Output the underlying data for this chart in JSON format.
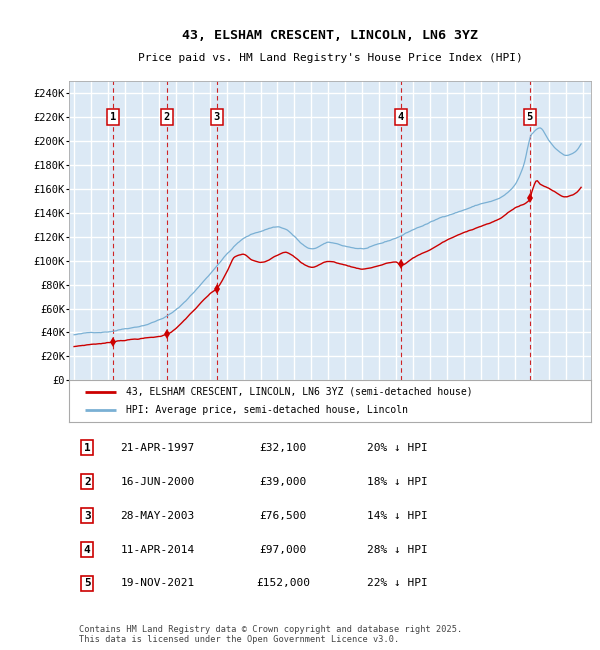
{
  "title": "43, ELSHAM CRESCENT, LINCOLN, LN6 3YZ",
  "subtitle": "Price paid vs. HM Land Registry's House Price Index (HPI)",
  "ylim": [
    0,
    250000
  ],
  "yticks": [
    0,
    20000,
    40000,
    60000,
    80000,
    100000,
    120000,
    140000,
    160000,
    180000,
    200000,
    220000,
    240000
  ],
  "ytick_labels": [
    "£0",
    "£20K",
    "£40K",
    "£60K",
    "£80K",
    "£100K",
    "£120K",
    "£140K",
    "£160K",
    "£180K",
    "£200K",
    "£220K",
    "£240K"
  ],
  "xlim_start": 1994.7,
  "xlim_end": 2025.5,
  "plot_bg_color": "#dce9f5",
  "grid_color": "#ffffff",
  "sale_dates_num": [
    1997.31,
    2000.46,
    2003.41,
    2014.28,
    2021.89
  ],
  "sale_prices": [
    32100,
    39000,
    76500,
    97000,
    152000
  ],
  "sale_labels": [
    "1",
    "2",
    "3",
    "4",
    "5"
  ],
  "vline_color": "#cc0000",
  "property_line_color": "#cc0000",
  "hpi_line_color": "#7ab0d4",
  "legend_labels": [
    "43, ELSHAM CRESCENT, LINCOLN, LN6 3YZ (semi-detached house)",
    "HPI: Average price, semi-detached house, Lincoln"
  ],
  "footer_text": "Contains HM Land Registry data © Crown copyright and database right 2025.\nThis data is licensed under the Open Government Licence v3.0.",
  "table_rows": [
    [
      "1",
      "21-APR-1997",
      "£32,100",
      "20% ↓ HPI"
    ],
    [
      "2",
      "16-JUN-2000",
      "£39,000",
      "18% ↓ HPI"
    ],
    [
      "3",
      "28-MAY-2003",
      "£76,500",
      "14% ↓ HPI"
    ],
    [
      "4",
      "11-APR-2014",
      "£97,000",
      "28% ↓ HPI"
    ],
    [
      "5",
      "19-NOV-2021",
      "£152,000",
      "22% ↓ HPI"
    ]
  ]
}
